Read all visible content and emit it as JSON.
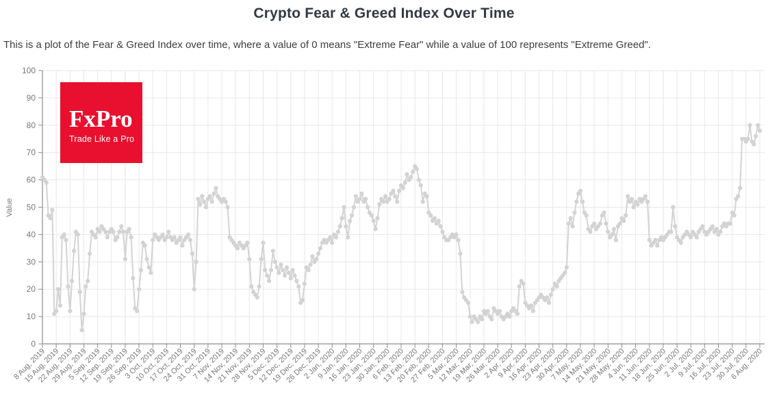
{
  "page": {
    "title": "Crypto Fear & Greed Index Over Time",
    "subtitle": "This is a plot of the Fear & Greed Index over time, where a value of 0 means \"Extreme Fear\" while a value of 100 represents \"Extreme Greed\"."
  },
  "logo": {
    "brand": "FxPro",
    "tagline": "Trade Like a Pro",
    "bg_color": "#e8102e",
    "text_color": "#ffffff"
  },
  "chart_data": {
    "type": "line",
    "title": "Crypto Fear & Greed Index Over Time",
    "xlabel": "",
    "ylabel": "Value",
    "ylim": [
      0,
      100
    ],
    "y_ticks": [
      0,
      10,
      20,
      30,
      40,
      50,
      60,
      70,
      80,
      90,
      100
    ],
    "sampling": "daily",
    "x_tick_interval_days": 7,
    "x_tick_labels": [
      "8 Aug, 2019",
      "15 Aug, 2019",
      "22 Aug, 2019",
      "29 Aug, 2019",
      "5 Sep, 2019",
      "12 Sep, 2019",
      "19 Sep, 2019",
      "26 Sep, 2019",
      "3 Oct, 2019",
      "10 Oct, 2019",
      "17 Oct, 2019",
      "24 Oct, 2019",
      "31 Oct, 2019",
      "7 Nov, 2019",
      "14 Nov, 2019",
      "21 Nov, 2019",
      "28 Nov, 2019",
      "5 Dec, 2019",
      "12 Dec, 2019",
      "19 Dec, 2019",
      "26 Dec, 2019",
      "2 Jan, 2020",
      "9 Jan, 2020",
      "16 Jan, 2020",
      "23 Jan, 2020",
      "30 Jan, 2020",
      "6 Feb, 2020",
      "13 Feb, 2020",
      "20 Feb, 2020",
      "27 Feb, 2020",
      "5 Mar, 2020",
      "12 Mar, 2020",
      "19 Mar, 2020",
      "26 Mar, 2020",
      "2 Apr, 2020",
      "9 Apr, 2020",
      "16 Apr, 2020",
      "23 Apr, 2020",
      "30 Apr, 2020",
      "7 May, 2020",
      "14 May, 2020",
      "21 May, 2020",
      "28 May, 2020",
      "4 Jun, 2020",
      "11 Jun, 2020",
      "18 Jun, 2020",
      "25 Jun, 2020",
      "2 Jul, 2020",
      "9 Jul, 2020",
      "16 Jul, 2020",
      "23 Jul, 2020",
      "30 Jul, 2020",
      "6 Aug, 2020"
    ],
    "grid": true,
    "legend": false,
    "colors": {
      "line": "#d3d3d3",
      "grid": "#e7e7e7",
      "axis": "#8c8c8c",
      "tick_label": "#777777"
    },
    "series": [
      {
        "name": "Fear & Greed Index",
        "start_date": "8 Aug, 2019",
        "end_date": "6 Aug, 2020",
        "values": [
          61,
          60,
          59,
          47,
          46,
          49,
          11,
          12,
          20,
          14,
          39,
          40,
          38,
          21,
          12,
          23,
          34,
          41,
          40,
          19,
          5,
          11,
          21,
          23,
          33,
          41,
          40,
          39,
          42,
          41,
          43,
          42,
          41,
          39,
          41,
          42,
          41,
          38,
          39,
          41,
          43,
          41,
          31,
          41,
          42,
          39,
          24,
          13,
          12,
          20,
          27,
          37,
          36,
          31,
          28,
          26,
          38,
          40,
          39,
          38,
          39,
          40,
          38,
          39,
          41,
          39,
          38,
          39,
          37,
          38,
          39,
          36,
          38,
          39,
          40,
          38,
          33,
          20,
          30,
          53,
          51,
          54,
          52,
          50,
          53,
          54,
          52,
          55,
          57,
          54,
          53,
          52,
          53,
          52,
          50,
          39,
          38,
          37,
          36,
          35,
          37,
          36,
          35,
          36,
          37,
          31,
          21,
          19,
          18,
          17,
          21,
          31,
          37,
          27,
          25,
          23,
          27,
          34,
          30,
          28,
          26,
          29,
          27,
          25,
          28,
          26,
          24,
          27,
          25,
          23,
          21,
          15,
          16,
          22,
          28,
          27,
          29,
          32,
          30,
          31,
          33,
          35,
          37,
          38,
          37,
          38,
          39,
          37,
          40,
          39,
          41,
          43,
          46,
          50,
          43,
          39,
          45,
          47,
          50,
          54,
          52,
          53,
          55,
          52,
          53,
          50,
          48,
          47,
          45,
          42,
          46,
          51,
          53,
          52,
          54,
          52,
          53,
          55,
          56,
          54,
          52,
          56,
          58,
          57,
          59,
          62,
          60,
          61,
          63,
          65,
          64,
          60,
          58,
          52,
          55,
          54,
          48,
          47,
          45,
          46,
          44,
          45,
          43,
          41,
          39,
          38,
          38,
          39,
          40,
          39,
          40,
          38,
          33,
          19,
          17,
          16,
          15,
          10,
          8,
          10,
          9,
          8,
          10,
          9,
          12,
          11,
          12,
          10,
          9,
          13,
          12,
          11,
          12,
          10,
          9,
          10,
          11,
          10,
          12,
          13,
          12,
          11,
          21,
          23,
          22,
          15,
          14,
          13,
          14,
          12,
          15,
          16,
          17,
          18,
          17,
          16,
          17,
          15,
          18,
          20,
          22,
          21,
          23,
          24,
          25,
          26,
          28,
          44,
          46,
          43,
          48,
          52,
          55,
          56,
          52,
          48,
          47,
          42,
          41,
          43,
          44,
          42,
          43,
          44,
          47,
          48,
          44,
          41,
          39,
          40,
          42,
          38,
          43,
          44,
          46,
          45,
          47,
          54,
          52,
          53,
          50,
          52,
          51,
          53,
          52,
          53,
          54,
          52,
          38,
          36,
          37,
          38,
          36,
          38,
          39,
          38,
          39,
          40,
          41,
          41,
          50,
          43,
          39,
          38,
          37,
          39,
          40,
          41,
          40,
          39,
          41,
          40,
          39,
          41,
          42,
          43,
          41,
          40,
          41,
          42,
          43,
          41,
          42,
          40,
          41,
          43,
          44,
          43,
          44,
          44,
          48,
          47,
          53,
          54,
          57,
          75,
          75,
          74,
          75,
          80,
          74,
          73,
          76,
          80,
          78
        ]
      }
    ]
  }
}
